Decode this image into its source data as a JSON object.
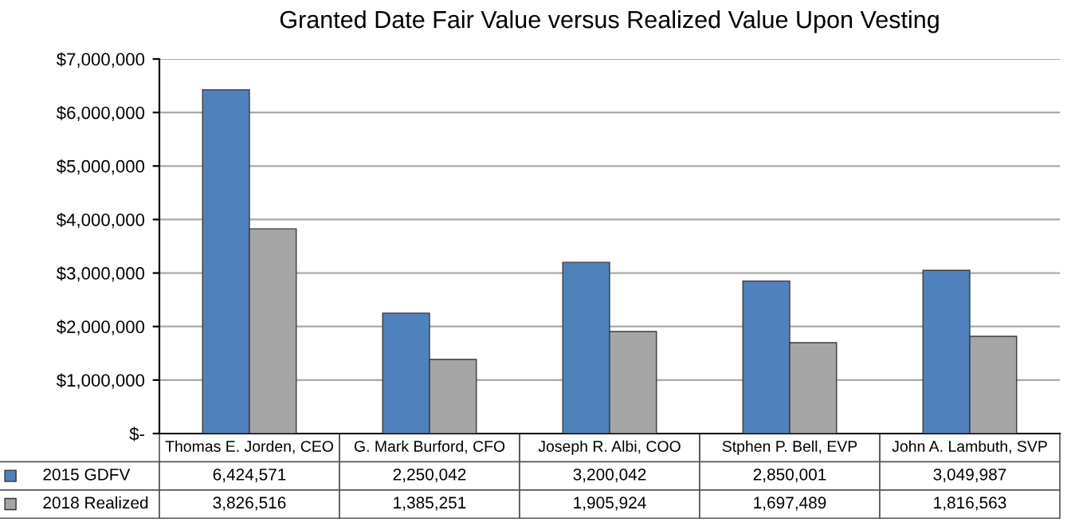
{
  "chart_data": {
    "type": "bar",
    "title": "Granted Date Fair Value versus Realized Value Upon Vesting",
    "categories": [
      "Thomas E. Jorden, CEO",
      "G. Mark Burford, CFO",
      "Joseph R. Albi, COO",
      "Stphen P. Bell, EVP",
      "John A. Lambuth, SVP"
    ],
    "series": [
      {
        "name": "2015 GDFV",
        "color": "#4f81bd",
        "values": [
          6424571,
          2250042,
          3200042,
          2850001,
          3049987
        ],
        "value_labels": [
          "6,424,571",
          "2,250,042",
          "3,200,042",
          "2,850,001",
          "3,049,987"
        ]
      },
      {
        "name": "2018 Realized",
        "color": "#a5a5a5",
        "values": [
          3826516,
          1385251,
          1905924,
          1697489,
          1816563
        ],
        "value_labels": [
          "3,826,516",
          "1,385,251",
          "1,905,924",
          "1,697,489",
          "1,816,563"
        ]
      }
    ],
    "ylim": [
      0,
      7000000
    ],
    "yticks": [
      {
        "value": 0,
        "label": "$-"
      },
      {
        "value": 1000000,
        "label": "$1,000,000"
      },
      {
        "value": 2000000,
        "label": "$2,000,000"
      },
      {
        "value": 3000000,
        "label": "$3,000,000"
      },
      {
        "value": 4000000,
        "label": "$4,000,000"
      },
      {
        "value": 5000000,
        "label": "$5,000,000"
      },
      {
        "value": 6000000,
        "label": "$6,000,000"
      },
      {
        "value": 7000000,
        "label": "$7,000,000"
      }
    ],
    "grid": "y",
    "legend": "bottom"
  }
}
